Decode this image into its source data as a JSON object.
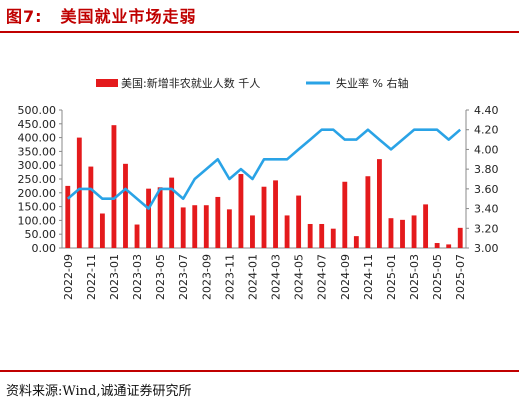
{
  "header": {
    "figure_label": "图7:",
    "title": "美国就业市场走弱"
  },
  "footer": {
    "source": "资料来源:Wind,诚通证券研究所"
  },
  "colors": {
    "bar": "#e41a1c",
    "line": "#2aa3e6",
    "title": "#c00000"
  },
  "chart_data": {
    "type": "bar+line",
    "legend_position": "top-center",
    "grid": false,
    "left_axis": {
      "min": 0,
      "max": 500,
      "step": 50,
      "decimals": 2
    },
    "right_axis": {
      "min": 3.0,
      "max": 4.4,
      "step": 0.2,
      "decimals": 2
    },
    "x_tick_labels": [
      "2022-09",
      "2022-11",
      "2023-01",
      "2023-03",
      "2023-05",
      "2023-07",
      "2023-09",
      "2023-11",
      "2024-01",
      "2024-03",
      "2024-05",
      "2024-07",
      "2024-09",
      "2024-11",
      "2025-01",
      "2025-03",
      "2025-05",
      "2025-07"
    ],
    "x": [
      "2022-09",
      "2022-10",
      "2022-11",
      "2022-12",
      "2023-01",
      "2023-02",
      "2023-03",
      "2023-04",
      "2023-05",
      "2023-06",
      "2023-07",
      "2023-08",
      "2023-09",
      "2023-10",
      "2023-11",
      "2023-12",
      "2024-01",
      "2024-02",
      "2024-03",
      "2024-04",
      "2024-05",
      "2024-06",
      "2024-07",
      "2024-08",
      "2024-09",
      "2024-10",
      "2024-11",
      "2024-12",
      "2025-01",
      "2025-02",
      "2025-03",
      "2025-04",
      "2025-05",
      "2025-06",
      "2025-07"
    ],
    "series": [
      {
        "name": "美国:新增非农就业人数  千人",
        "type": "bar",
        "axis": "left",
        "values": [
          225,
          400,
          295,
          125,
          445,
          305,
          85,
          215,
          220,
          255,
          147,
          155,
          155,
          185,
          140,
          268,
          118,
          222,
          245,
          118,
          190,
          87,
          87,
          70,
          240,
          43,
          260,
          322,
          108,
          102,
          118,
          158,
          18,
          13,
          73
        ]
      },
      {
        "name": "失业率 % 右轴",
        "type": "line",
        "axis": "right",
        "values": [
          3.5,
          3.6,
          3.6,
          3.5,
          3.5,
          3.6,
          3.5,
          3.4,
          3.6,
          3.6,
          3.5,
          3.7,
          3.8,
          3.9,
          3.7,
          3.8,
          3.7,
          3.9,
          3.9,
          3.9,
          4.0,
          4.1,
          4.2,
          4.2,
          4.1,
          4.1,
          4.2,
          4.1,
          4.0,
          4.1,
          4.2,
          4.2,
          4.2,
          4.1,
          4.2
        ]
      }
    ]
  }
}
